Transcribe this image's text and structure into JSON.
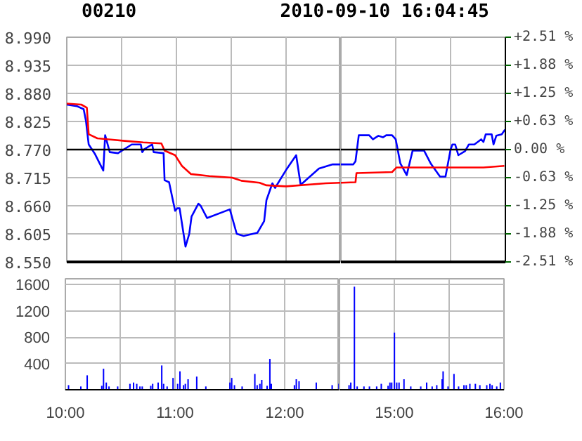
{
  "chart_data": [
    {
      "type": "line",
      "title": "00210",
      "subtitle": "2010-09-10 16:04:45",
      "tick_labels": "y",
      "grid": true,
      "marker": "none",
      "line_style": "solid",
      "xlim": [
        10,
        12.5
      ],
      "xticks": [
        {
          "value": 10,
          "label": null
        },
        {
          "value": 10.5,
          "label": null
        },
        {
          "value": 11,
          "label": null
        },
        {
          "value": 11.5,
          "label": null
        },
        {
          "value": 12,
          "label": null
        },
        {
          "value": 12.5,
          "label": null
        }
      ],
      "ylim": [
        8.55,
        8.99
      ],
      "yticks": [
        {
          "value": 8.55,
          "label": "8.550"
        },
        8.605,
        {
          "value": 8.66,
          "label": "8.660"
        },
        8.715,
        {
          "value": 8.77,
          "label": "8.770"
        },
        8.825,
        {
          "value": 8.88,
          "label": "8.880"
        },
        8.935,
        {
          "value": 8.99,
          "label": "8.990"
        }
      ],
      "ref_lines": [
        {
          "axis": "y",
          "value": 8.77,
          "color": "#000000"
        }
      ],
      "series": [
        {
          "color": "#0000ff",
          "x": [
            10,
            10.092,
            10.154,
            10.175,
            10.2,
            10.258,
            10.333,
            10.35,
            10.392,
            10.467,
            10.592,
            10.675,
            10.688,
            10.708,
            10.779,
            10.792,
            10.883,
            10.892,
            10.933,
            10.988,
            11.008,
            11.029,
            11.05,
            11.083,
            11.117,
            11.138,
            11.2,
            11.221,
            11.279,
            11.487,
            11.55,
            11.613,
            11.738,
            11.8,
            11.821,
            11.875,
            11.9,
            12.0,
            12.092,
            12.133,
            12.3,
            12.425,
            12.5
          ],
          "values": [
            8.858,
            8.855,
            8.849,
            8.826,
            8.78,
            8.761,
            8.729,
            8.798,
            8.765,
            8.763,
            8.78,
            8.78,
            8.765,
            8.771,
            8.78,
            8.765,
            8.763,
            8.71,
            8.706,
            8.65,
            8.655,
            8.655,
            8.626,
            8.58,
            8.605,
            8.639,
            8.664,
            8.66,
            8.636,
            8.653,
            8.605,
            8.601,
            8.607,
            8.63,
            8.671,
            8.704,
            8.695,
            8.73,
            8.759,
            8.701,
            8.733,
            8.741,
            8.741
          ]
        },
        {
          "color": "#ff0000",
          "x": [
            10,
            10.133,
            10.183,
            10.2,
            10.279,
            10.383,
            10.529,
            10.696,
            10.863,
            10.892,
            10.988,
            11.05,
            11.133,
            11.3,
            11.508,
            11.592,
            11.758,
            11.821,
            12.0,
            12.363,
            12.5
          ],
          "values": [
            8.86,
            8.858,
            8.852,
            8.8,
            8.792,
            8.79,
            8.787,
            8.784,
            8.782,
            8.768,
            8.759,
            8.738,
            8.722,
            8.718,
            8.715,
            8.709,
            8.705,
            8.7,
            8.698,
            8.704,
            8.705
          ]
        }
      ]
    },
    {
      "type": "line",
      "tick_labels": false,
      "grid": true,
      "marker": "none",
      "line_style": "solid",
      "xlim": [
        14.5,
        16
      ],
      "xticks": [
        {
          "value": 15,
          "label": null
        },
        {
          "value": 15.5,
          "label": null
        },
        {
          "value": 16,
          "label": null
        }
      ],
      "ylim": [
        8.55,
        8.99
      ],
      "yticks": [
        8.605,
        8.66,
        8.715,
        8.77,
        8.825,
        8.88,
        8.935
      ],
      "y2lim": [
        -2.51,
        2.51
      ],
      "y2ticks": [
        {
          "value": -2.51,
          "label": "-2.51 %"
        },
        {
          "value": -1.88,
          "label": "-1.88 %"
        },
        {
          "value": -1.25,
          "label": "-1.25 %"
        },
        {
          "value": -0.63,
          "label": "-0.63 %"
        },
        {
          "value": 0,
          "label": "0.00 %"
        },
        {
          "value": 0.63,
          "label": "+0.63 %"
        },
        {
          "value": 1.25,
          "label": "+1.25 %"
        },
        {
          "value": 1.88,
          "label": "+1.88 %"
        },
        {
          "value": 2.51,
          "label": "+2.51 %"
        }
      ],
      "ref_lines": [
        {
          "axis": "y",
          "value": 8.77,
          "color": "#000000"
        }
      ],
      "series": [
        {
          "color": "#0000ff",
          "x": [
            14.5,
            14.613,
            14.633,
            14.663,
            14.758,
            14.792,
            14.842,
            14.883,
            14.913,
            14.967,
            15.0,
            15.042,
            15.1,
            15.154,
            15.258,
            15.321,
            15.404,
            15.454,
            15.5,
            15.517,
            15.542,
            15.571,
            15.633,
            15.667,
            15.717,
            15.779,
            15.8,
            15.821,
            15.875,
            15.892,
            15.917,
            15.967,
            15.996
          ],
          "values": [
            8.741,
            8.741,
            8.747,
            8.798,
            8.798,
            8.79,
            8.797,
            8.794,
            8.798,
            8.798,
            8.79,
            8.743,
            8.72,
            8.768,
            8.768,
            8.742,
            8.717,
            8.717,
            8.77,
            8.78,
            8.78,
            8.759,
            8.767,
            8.78,
            8.78,
            8.79,
            8.785,
            8.8,
            8.8,
            8.78,
            8.797,
            8.8,
            8.809
          ]
        },
        {
          "color": "#ff0000",
          "x": [
            14.5,
            14.633,
            14.642,
            14.967,
            15.008,
            15.8,
            15.99
          ],
          "values": [
            8.705,
            8.706,
            8.724,
            8.726,
            8.735,
            8.735,
            8.738
          ]
        }
      ]
    },
    {
      "type": "bar",
      "grid": true,
      "color": "#0000ff",
      "xlim": [
        10,
        12.5
      ],
      "xticks": [
        {
          "value": 10,
          "label": "10:00"
        },
        {
          "value": 10.5,
          "label": null
        },
        {
          "value": 11,
          "label": "11:00"
        },
        {
          "value": 11.5,
          "label": null
        },
        {
          "value": 12,
          "label": "12:00"
        },
        {
          "value": 12.5,
          "label": null
        }
      ],
      "ylim": [
        0,
        1690
      ],
      "yticks": [
        400,
        800,
        1200,
        1600
      ],
      "x": [
        10.029,
        10.141,
        10.199,
        10.332,
        10.348,
        10.373,
        10.398,
        10.477,
        10.589,
        10.622,
        10.651,
        10.68,
        10.701,
        10.779,
        10.796,
        10.846,
        10.879,
        10.896,
        10.928,
        10.982,
        11.024,
        11.045,
        11.078,
        11.094,
        11.119,
        11.198,
        11.281,
        11.501,
        11.517,
        11.542,
        11.612,
        11.728,
        11.749,
        11.774,
        11.791,
        11.84,
        11.865,
        11.878,
        12.089,
        12.106,
        12.131,
        12.288,
        12.433,
        12.495
      ],
      "values": [
        70,
        50,
        220,
        60,
        320,
        110,
        50,
        50,
        90,
        110,
        90,
        50,
        50,
        60,
        90,
        110,
        370,
        90,
        50,
        180,
        90,
        280,
        70,
        90,
        160,
        200,
        50,
        110,
        180,
        70,
        50,
        240,
        70,
        90,
        150,
        60,
        470,
        90,
        70,
        160,
        130,
        110,
        70,
        90
      ]
    },
    {
      "type": "bar",
      "grid": true,
      "color": "#0000ff",
      "tick_labels": "x",
      "xlim": [
        14.5,
        16
      ],
      "xticks": [
        {
          "value": 15,
          "label": "15:00"
        },
        {
          "value": 15.5,
          "label": null
        },
        {
          "value": 16,
          "label": "16:00"
        }
      ],
      "ylim": [
        0,
        1690
      ],
      "yticks": [
        400,
        800,
        1200,
        1600
      ],
      "x": [
        14.587,
        14.603,
        14.636,
        14.661,
        14.723,
        14.773,
        14.839,
        14.881,
        14.943,
        14.96,
        14.976,
        15.001,
        15.022,
        15.043,
        15.088,
        15.15,
        15.241,
        15.295,
        15.345,
        15.387,
        15.436,
        15.445,
        15.49,
        15.544,
        15.586,
        15.635,
        15.656,
        15.689,
        15.739,
        15.78,
        15.843,
        15.872,
        15.892,
        15.934,
        15.967
      ],
      "values": [
        70,
        110,
        1570,
        50,
        50,
        50,
        50,
        90,
        60,
        110,
        110,
        870,
        110,
        110,
        160,
        50,
        50,
        110,
        50,
        70,
        160,
        280,
        50,
        240,
        50,
        70,
        70,
        90,
        90,
        70,
        70,
        90,
        70,
        50,
        110
      ]
    }
  ]
}
